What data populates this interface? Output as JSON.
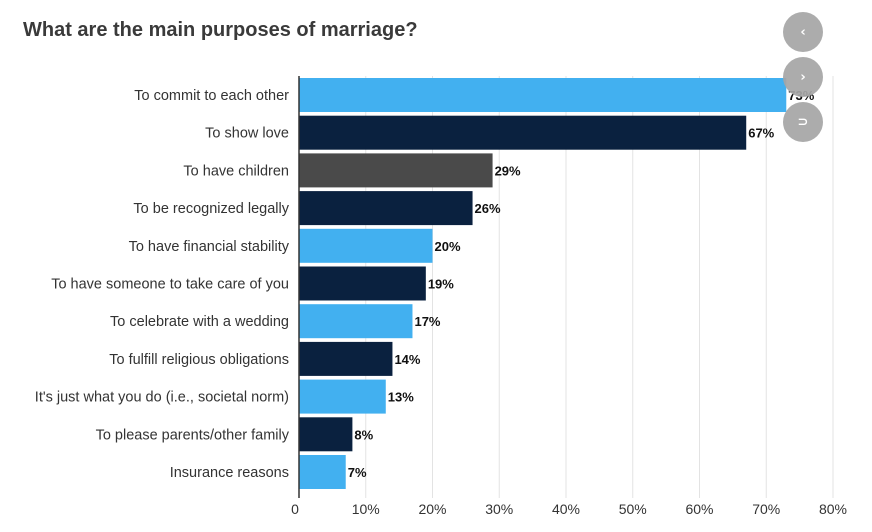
{
  "chart_data": {
    "type": "bar",
    "orientation": "horizontal",
    "title": "What are the main purposes of marriage?",
    "categories": [
      "To commit to each other",
      "To show love",
      "To have children",
      "To be recognized legally",
      "To have financial stability",
      "To have someone to take care of you",
      "To celebrate with a wedding",
      "To fulfill religious obligations",
      "It's just what you do (i.e., societal norm)",
      "To please parents/other family",
      "Insurance reasons"
    ],
    "values": [
      73,
      67,
      29,
      26,
      20,
      19,
      17,
      14,
      13,
      8,
      7
    ],
    "value_labels": [
      "73%",
      "67%",
      "29%",
      "26%",
      "20%",
      "19%",
      "17%",
      "14%",
      "13%",
      "8%",
      "7%"
    ],
    "bar_colors": [
      "#42b0f0",
      "#0a213f",
      "#4a4a4a",
      "#0a213f",
      "#42b0f0",
      "#0a213f",
      "#42b0f0",
      "#0a213f",
      "#42b0f0",
      "#0a213f",
      "#42b0f0"
    ],
    "xlim": [
      0,
      80
    ],
    "x_ticks": [
      0,
      10,
      20,
      30,
      40,
      50,
      60,
      70,
      80
    ],
    "x_tick_labels": [
      "0",
      "10%",
      "20%",
      "30%",
      "40%",
      "50%",
      "60%",
      "70%",
      "80%"
    ],
    "grid": true,
    "xlabel": "",
    "ylabel": ""
  },
  "nav": {
    "prev_icon": "chevron-left-icon",
    "next_icon": "chevron-right-icon",
    "collapse_icon": "collapse-icon",
    "prev_glyph": "‹",
    "next_glyph": "›",
    "collapse_glyph": "⊃",
    "button_color": "#a6a6a6"
  }
}
